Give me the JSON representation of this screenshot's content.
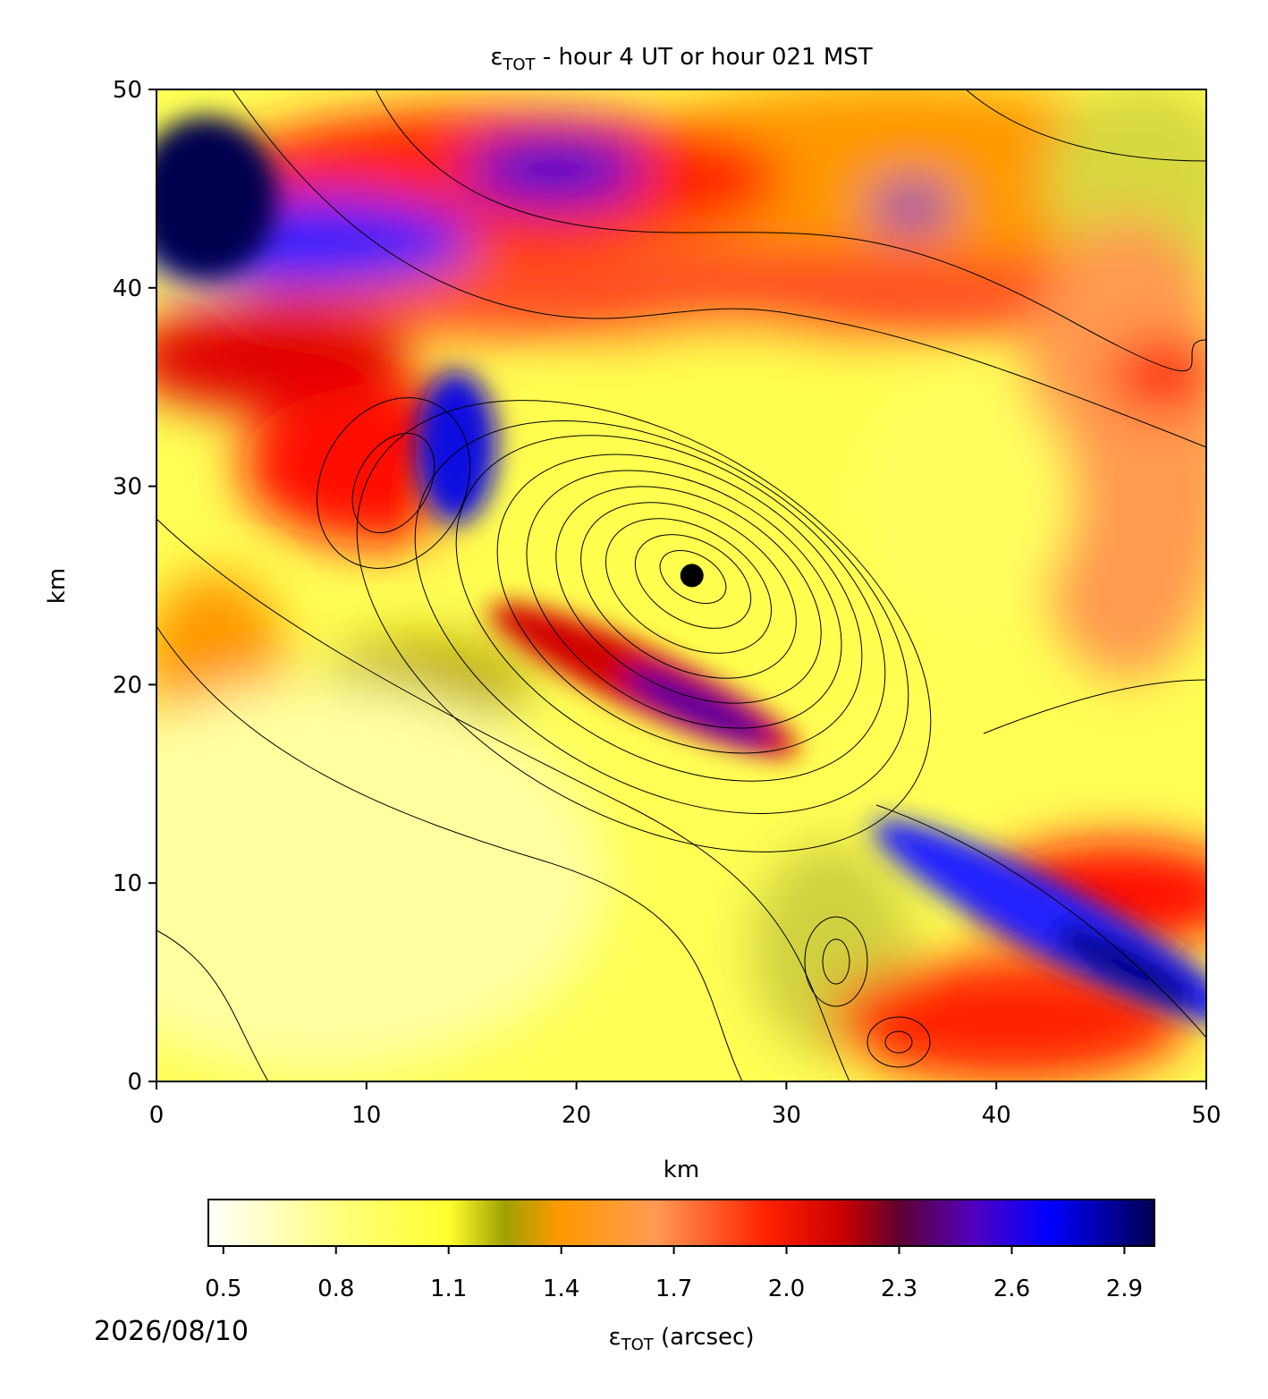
{
  "chart_data": {
    "type": "heatmap",
    "title": {
      "symbol": "ε",
      "subscript": "TOT",
      "text": " - hour 4 UT or hour 021 MST"
    },
    "x_label": "km",
    "y_label": "km",
    "xlim": [
      0,
      50
    ],
    "ylim": [
      0,
      50
    ],
    "xticks": [
      0,
      10,
      20,
      30,
      40,
      50
    ],
    "yticks": [
      0,
      10,
      20,
      30,
      40,
      50
    ],
    "site": {
      "x": 25.5,
      "y": 25.5,
      "color": "#000000"
    },
    "colorbar": {
      "label": {
        "symbol": "ε",
        "subscript": "TOT",
        "text": " (arcsec)"
      },
      "clim": [
        0.46,
        2.98
      ],
      "ticks": [
        0.5,
        0.8,
        1.1,
        1.4,
        1.7,
        {
          "value": 2,
          "label": "2.0"
        },
        2.3,
        2.6,
        2.9
      ],
      "colormap": [
        {
          "value": 0.46,
          "color": "#ffffff"
        },
        {
          "value": 0.8,
          "color": "#ffff80"
        },
        {
          "value": 1.1,
          "color": "#ffff30"
        },
        {
          "value": 1.25,
          "color": "#a0a000"
        },
        {
          "value": 1.4,
          "color": "#ff9900"
        },
        {
          "value": 1.65,
          "color": "#ff9a55"
        },
        {
          "value": 1.95,
          "color": "#ff2000"
        },
        {
          "value": 2.15,
          "color": "#c80000"
        },
        {
          "value": 2.3,
          "color": "#600030"
        },
        {
          "value": 2.5,
          "color": "#5000c0"
        },
        {
          "value": 2.7,
          "color": "#0000ff"
        },
        {
          "value": 2.98,
          "color": "#000050"
        }
      ]
    },
    "date": "2026/08/10"
  }
}
